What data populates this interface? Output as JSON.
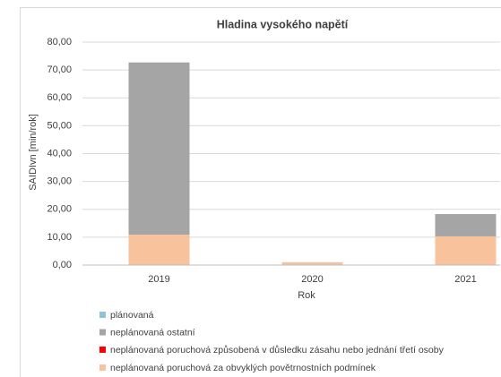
{
  "chart_data": {
    "type": "bar",
    "stacked": true,
    "title": "Hladina vysokého napětí",
    "ylabel": "SAIDIvn [min/rok]",
    "xlabel": "Rok",
    "categories": [
      "2019",
      "2020",
      "2021"
    ],
    "series": [
      {
        "name": "plánovaná",
        "color": "#8fc3d9",
        "values": [
          0,
          0,
          0
        ]
      },
      {
        "name": "neplánovaná ostatní",
        "color": "#a5a5a5",
        "values": [
          61.8,
          0.1,
          8.0
        ]
      },
      {
        "name": "neplánovaná poruchová způsobená v důsledku zásahu nebo jednání třetí osoby",
        "color": "#ff0000",
        "values": [
          0,
          0,
          0
        ]
      },
      {
        "name": "neplánovaná poruchová za obvyklých povětrnostních podmínek",
        "color": "#f8c29c",
        "values": [
          10.9,
          0.9,
          10.3
        ]
      }
    ],
    "ylim": [
      0,
      80
    ],
    "yticks": [
      {
        "value": 0,
        "label": "0,00"
      },
      {
        "value": 10,
        "label": "10,00"
      },
      {
        "value": 20,
        "label": "20,00"
      },
      {
        "value": 30,
        "label": "30,00"
      },
      {
        "value": 40,
        "label": "40,00"
      },
      {
        "value": 50,
        "label": "50,00"
      },
      {
        "value": 60,
        "label": "60,00"
      },
      {
        "value": 70,
        "label": "70,00"
      },
      {
        "value": 80,
        "label": "80,00"
      }
    ],
    "grid": true
  }
}
